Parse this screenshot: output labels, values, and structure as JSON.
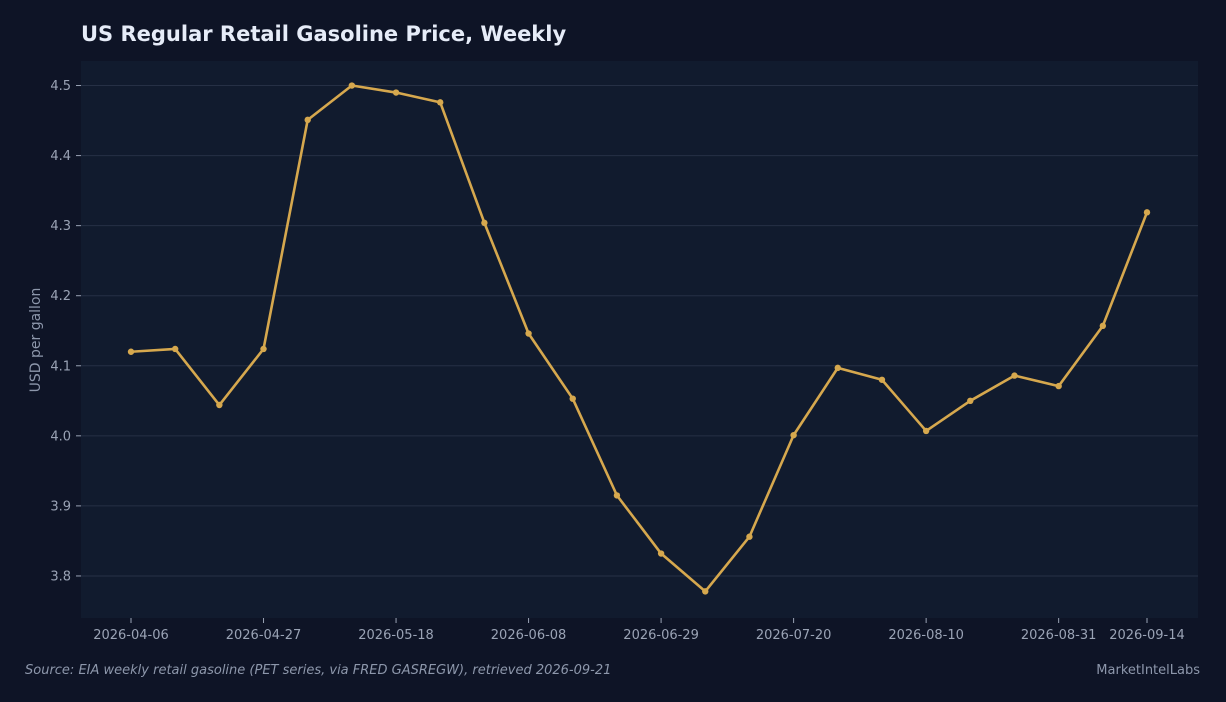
{
  "header": {
    "title": "US Regular Retail Gasoline Price, Weekly"
  },
  "footer": {
    "source": "Source: EIA weekly retail gasoline (PET series, via FRED GASREGW), retrieved 2026-09-21",
    "brand": "MarketIntelLabs"
  },
  "colors": {
    "background": "#0e1426",
    "plot_background": "#111b2e",
    "grid": "#263045",
    "line": "#d6a84e"
  },
  "chart_data": {
    "type": "line",
    "title": "US Regular Retail Gasoline Price, Weekly",
    "xlabel": "",
    "ylabel": "USD per gallon",
    "ylim": [
      3.74,
      4.535
    ],
    "yticks": [
      3.8,
      3.9,
      4.0,
      4.1,
      4.2,
      4.3,
      4.4,
      4.5
    ],
    "xticks": [
      "2026-04-06",
      "2026-04-27",
      "2026-05-18",
      "2026-06-08",
      "2026-06-29",
      "2026-07-20",
      "2026-08-10",
      "2026-08-31",
      "2026-09-14"
    ],
    "grid": "horizontal",
    "legend": "none",
    "x": [
      "2026-04-06",
      "2026-04-13",
      "2026-04-20",
      "2026-04-27",
      "2026-05-04",
      "2026-05-11",
      "2026-05-18",
      "2026-05-25",
      "2026-06-01",
      "2026-06-08",
      "2026-06-15",
      "2026-06-22",
      "2026-06-29",
      "2026-07-06",
      "2026-07-13",
      "2026-07-20",
      "2026-07-27",
      "2026-08-03",
      "2026-08-10",
      "2026-08-17",
      "2026-08-24",
      "2026-08-31",
      "2026-09-07",
      "2026-09-14"
    ],
    "series": [
      {
        "values": [
          4.12,
          4.124,
          4.044,
          4.124,
          4.451,
          4.5,
          4.49,
          4.476,
          4.304,
          4.146,
          4.053,
          3.915,
          3.832,
          3.778,
          3.856,
          4.001,
          4.097,
          4.08,
          4.007,
          4.05,
          4.086,
          4.071,
          4.157,
          4.319
        ]
      }
    ]
  }
}
